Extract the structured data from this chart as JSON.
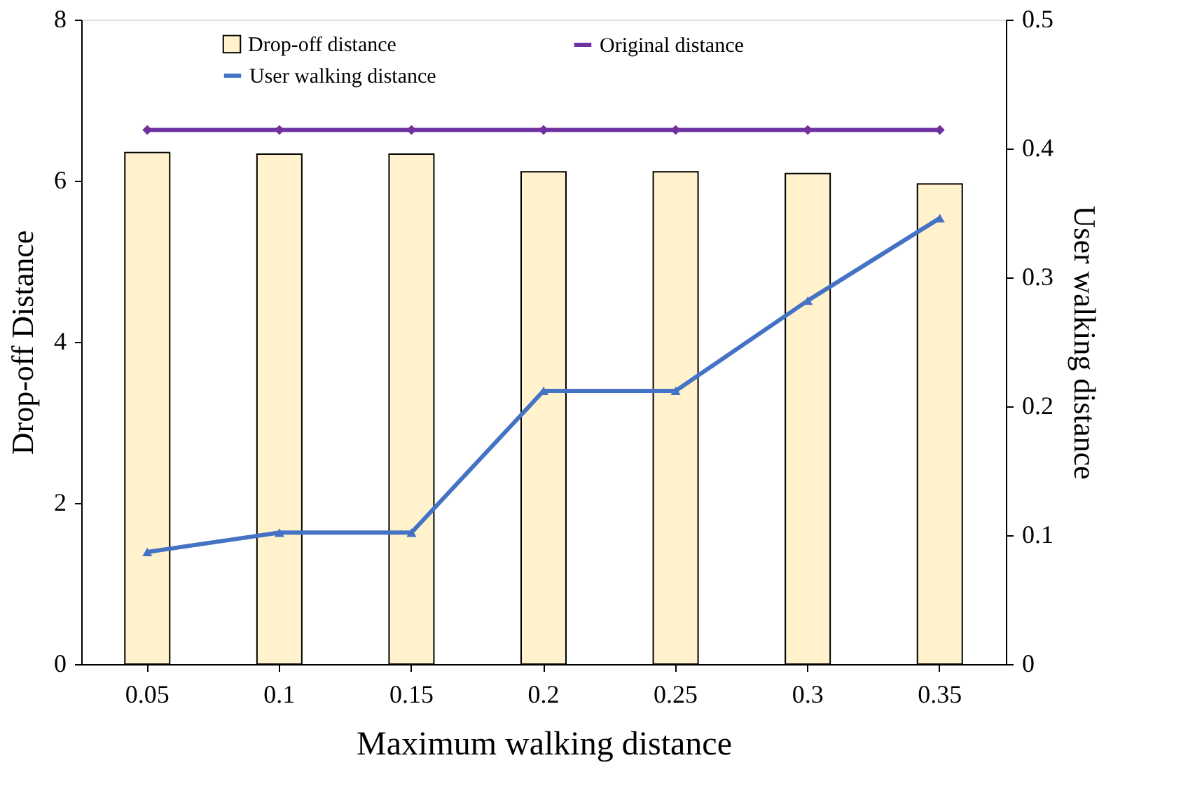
{
  "chart_data": {
    "type": "bar",
    "xlabel": "Maximum walking distance",
    "ylabel": "Drop-off Distance",
    "y2label": "User walking distance",
    "categories": [
      "0.05",
      "0.1",
      "0.15",
      "0.2",
      "0.25",
      "0.3",
      "0.35"
    ],
    "series": [
      {
        "name": "Drop-off distance",
        "color": "#fff2cc",
        "values": [
          6.35,
          6.33,
          6.33,
          6.11,
          6.11,
          6.09,
          5.96
        ]
      },
      {
        "name": "Original distance",
        "type": "line",
        "color": "#7030a0",
        "marker": "diamond",
        "values": [
          6.63,
          6.63,
          6.63,
          6.63,
          6.63,
          6.63,
          6.63
        ]
      },
      {
        "name": "User walking distance",
        "type": "line",
        "axis": "y2",
        "color": "#4472c4",
        "marker": "triangle",
        "values": [
          0.087,
          0.102,
          0.102,
          0.212,
          0.212,
          0.282,
          0.346
        ]
      }
    ],
    "ylim": [
      0,
      8
    ],
    "yticks": [
      0,
      2,
      4,
      6,
      8
    ],
    "y2lim": [
      0,
      0.5
    ],
    "y2ticks": [
      0,
      0.1,
      0.2,
      0.3,
      0.4,
      0.5
    ],
    "legend": "top",
    "grid": false
  }
}
